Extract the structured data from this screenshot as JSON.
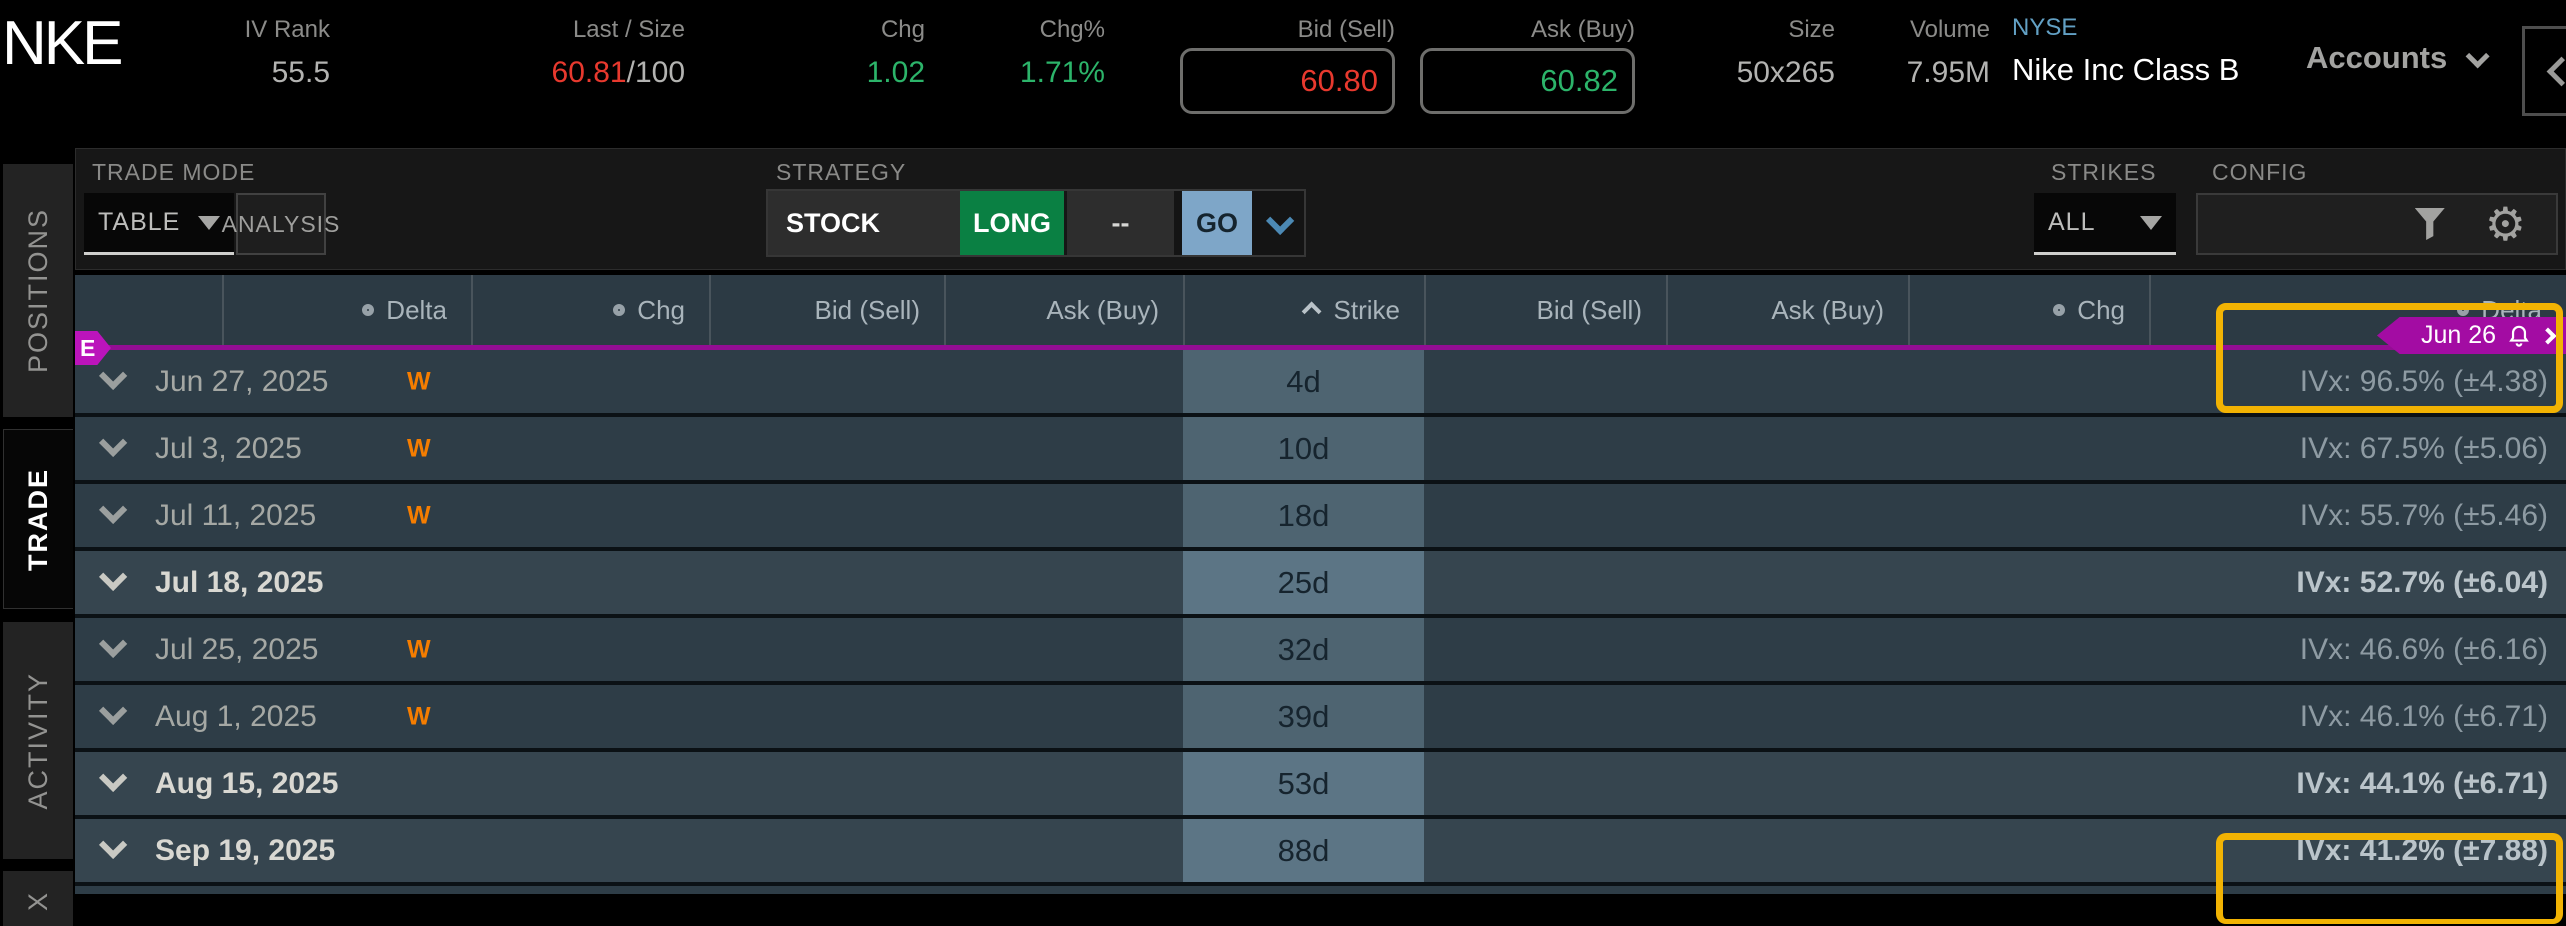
{
  "header": {
    "symbol": "NKE",
    "iv_rank_label": "IV Rank",
    "iv_rank": "55.5",
    "last_label": "Last / Size",
    "last": "60.81",
    "last_size": "/100",
    "chg_label": "Chg",
    "chg": "1.02",
    "chg_pct_label": "Chg%",
    "chg_pct": "1.71%",
    "bid_label": "Bid (Sell)",
    "bid": "60.80",
    "ask_label": "Ask (Buy)",
    "ask": "60.82",
    "size_label": "Size",
    "size": "50x265",
    "volume_label": "Volume",
    "volume": "7.95M",
    "exchange": "NYSE",
    "company": "Nike Inc Class B",
    "accounts_label": "Accounts"
  },
  "sidebar": {
    "tabs": [
      {
        "label": "POSITIONS",
        "active": false
      },
      {
        "label": "TRADE",
        "active": true
      },
      {
        "label": "ACTIVITY",
        "active": false
      },
      {
        "label": "X",
        "active": false
      }
    ]
  },
  "toolbar": {
    "trade_mode_label": "TRADE MODE",
    "trade_mode_value": "TABLE",
    "analysis_label": "ANALYSIS",
    "strategy_label": "STRATEGY",
    "strategy_value": "STOCK",
    "side_value": "LONG",
    "quantity_value": "--",
    "go_label": "GO",
    "strikes_label": "STRIKES",
    "strikes_value": "ALL",
    "config_label": "CONFIG"
  },
  "table": {
    "columns": [
      "",
      "Delta",
      "Chg",
      "Bid (Sell)",
      "Ask (Buy)",
      "Strike",
      "Bid (Sell)",
      "Ask (Buy)",
      "Chg",
      "Delta"
    ],
    "e_badge": "E",
    "expiration_tag": {
      "label": "Jun 26"
    },
    "weekly_badge": "W",
    "rows": [
      {
        "date": "Jun 27, 2025",
        "weekly": true,
        "dte": "4d",
        "ivx": "IVx: 96.5% (±4.38)",
        "highlighted": true
      },
      {
        "date": "Jul 3, 2025",
        "weekly": true,
        "dte": "10d",
        "ivx": "IVx: 67.5% (±5.06)",
        "highlighted": false
      },
      {
        "date": "Jul 11, 2025",
        "weekly": true,
        "dte": "18d",
        "ivx": "IVx: 55.7% (±5.46)",
        "highlighted": false
      },
      {
        "date": "Jul 18, 2025",
        "weekly": false,
        "dte": "25d",
        "ivx": "IVx: 52.7% (±6.04)",
        "highlighted": false
      },
      {
        "date": "Jul 25, 2025",
        "weekly": true,
        "dte": "32d",
        "ivx": "IVx: 46.6% (±6.16)",
        "highlighted": false
      },
      {
        "date": "Aug 1, 2025",
        "weekly": true,
        "dte": "39d",
        "ivx": "IVx: 46.1% (±6.71)",
        "highlighted": false
      },
      {
        "date": "Aug 15, 2025",
        "weekly": false,
        "dte": "53d",
        "ivx": "IVx: 44.1% (±6.71)",
        "highlighted": false
      },
      {
        "date": "Sep 19, 2025",
        "weekly": false,
        "dte": "88d",
        "ivx": "IVx: 41.2% (±7.88)",
        "highlighted": true
      }
    ]
  },
  "colors": {
    "positive_green": "#2cb46a",
    "negative_red": "#e8392e",
    "long_green": "#0a8043",
    "go_blue": "#7ea6c8",
    "expiration_purple": "#a30ca3",
    "highlight_yellow": "#f2b303",
    "weekly_orange": "#f57d00",
    "exchange_blue": "#62a0c4",
    "row_bg_weekly": "#2e3d47",
    "row_bg_monthly": "#36454f",
    "strike_bg_weekly": "#4e6471",
    "strike_bg_monthly": "#5c7585"
  }
}
